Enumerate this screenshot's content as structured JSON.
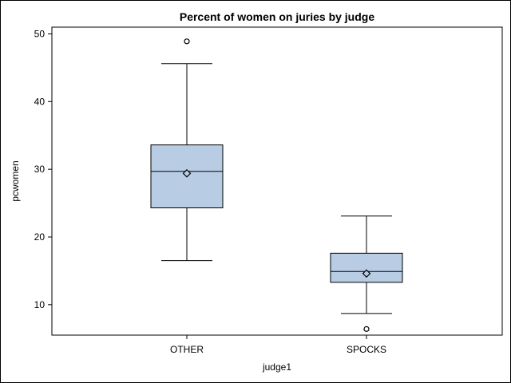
{
  "chart_data": {
    "type": "box",
    "title": "Percent of women on juries by judge",
    "xlabel": "judge1",
    "ylabel": "pcwomen",
    "categories": [
      "OTHER",
      "SPOCKS"
    ],
    "ylim": [
      5.5,
      51
    ],
    "yticks": [
      10,
      20,
      30,
      40,
      50
    ],
    "grid": false,
    "colors": {
      "box_fill": "#b8cce4",
      "stroke": "#000000"
    },
    "boxes": [
      {
        "category": "OTHER",
        "min": 16.5,
        "q1": 24.3,
        "median": 29.7,
        "q3": 33.6,
        "max": 45.6,
        "mean": 29.4,
        "outliers": [
          48.9
        ]
      },
      {
        "category": "SPOCKS",
        "min": 8.7,
        "q1": 13.3,
        "median": 14.9,
        "q3": 17.6,
        "max": 23.1,
        "mean": 14.6,
        "outliers": [
          6.4
        ]
      }
    ]
  }
}
